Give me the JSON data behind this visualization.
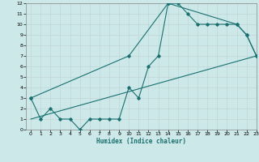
{
  "xlabel": "Humidex (Indice chaleur)",
  "ylabel": "",
  "background_color": "#cce8e8",
  "grid_color": "#c4d8d8",
  "line_color": "#1a7070",
  "xlim": [
    -0.5,
    23
  ],
  "ylim": [
    0,
    12
  ],
  "xticks": [
    0,
    1,
    2,
    3,
    4,
    5,
    6,
    7,
    8,
    9,
    10,
    11,
    12,
    13,
    14,
    15,
    16,
    17,
    18,
    19,
    20,
    21,
    22,
    23
  ],
  "yticks": [
    0,
    1,
    2,
    3,
    4,
    5,
    6,
    7,
    8,
    9,
    10,
    11,
    12
  ],
  "line1_x": [
    0,
    1,
    2,
    3,
    4,
    5,
    6,
    7,
    8,
    9,
    10,
    11,
    12,
    13,
    14,
    15,
    16,
    17,
    18,
    19,
    20,
    21,
    22,
    23
  ],
  "line1_y": [
    3,
    1,
    2,
    1,
    1,
    0,
    1,
    1,
    1,
    1,
    4,
    3,
    6,
    7,
    12,
    12,
    11,
    10,
    10,
    10,
    10,
    10,
    9,
    7
  ],
  "line2_x": [
    0,
    10,
    14,
    21,
    22,
    23
  ],
  "line2_y": [
    3,
    7,
    12,
    10,
    9,
    7
  ],
  "line3_x": [
    0,
    23
  ],
  "line3_y": [
    1,
    7
  ]
}
